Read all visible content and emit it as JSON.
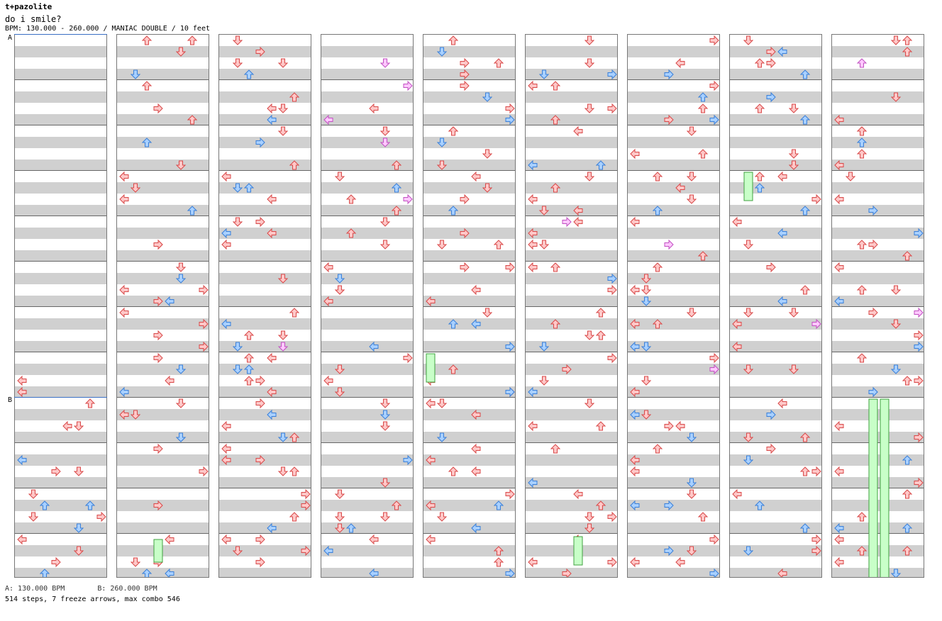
{
  "header": {
    "artist": "t+pazolite",
    "title": "do i smile?",
    "info": "BPM: 130.000 - 260.000 / MANIAC DOUBLE / 10 feet"
  },
  "markers": {
    "a": "A",
    "b": "B"
  },
  "footer": {
    "bpm_a": "A: 130.000 BPM",
    "bpm_b": "B: 260.000 BPM",
    "stats": "514 steps, 7 freeze arrows, max combo 546"
  },
  "colors": {
    "red_fill": "#ffc8c8",
    "red_stroke": "#d84848",
    "blue_fill": "#a8d0ff",
    "blue_stroke": "#3a7fd8",
    "pink_fill": "#ffc8ff",
    "pink_stroke": "#c050c0",
    "freeze_fill": "#c8ffc8",
    "freeze_stroke": "#40a040"
  },
  "columns": 9
}
